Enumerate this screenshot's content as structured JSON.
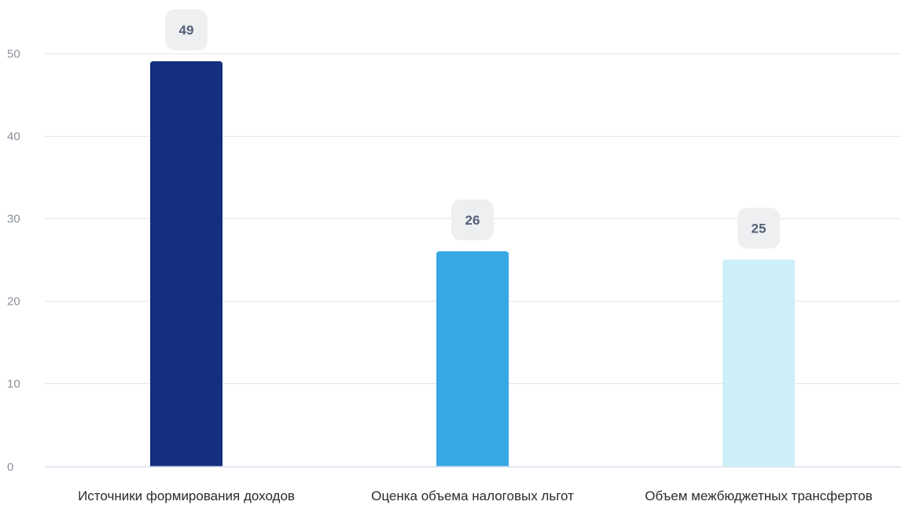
{
  "chart_data": {
    "type": "bar",
    "categories": [
      "Источники формирования доходов",
      "Оценка объема налоговых льгот",
      "Объем межбюджетных трансфертов"
    ],
    "values": [
      49,
      26,
      25
    ],
    "colors": [
      "#132f7d",
      "#37a8e3",
      "#cdf0f8"
    ],
    "ylim": [
      0,
      50
    ],
    "yticks": [
      "0",
      "10",
      "20",
      "30",
      "40",
      "50"
    ],
    "data_labels": [
      "49",
      "26",
      "25"
    ],
    "grid": true,
    "legend": "none",
    "xlabel": "",
    "ylabel": "",
    "title": ""
  },
  "style": {
    "grid_color": "#e3e6ea",
    "axis_color": "#c9d3e4",
    "label_badge_color": "#eeeff1"
  }
}
